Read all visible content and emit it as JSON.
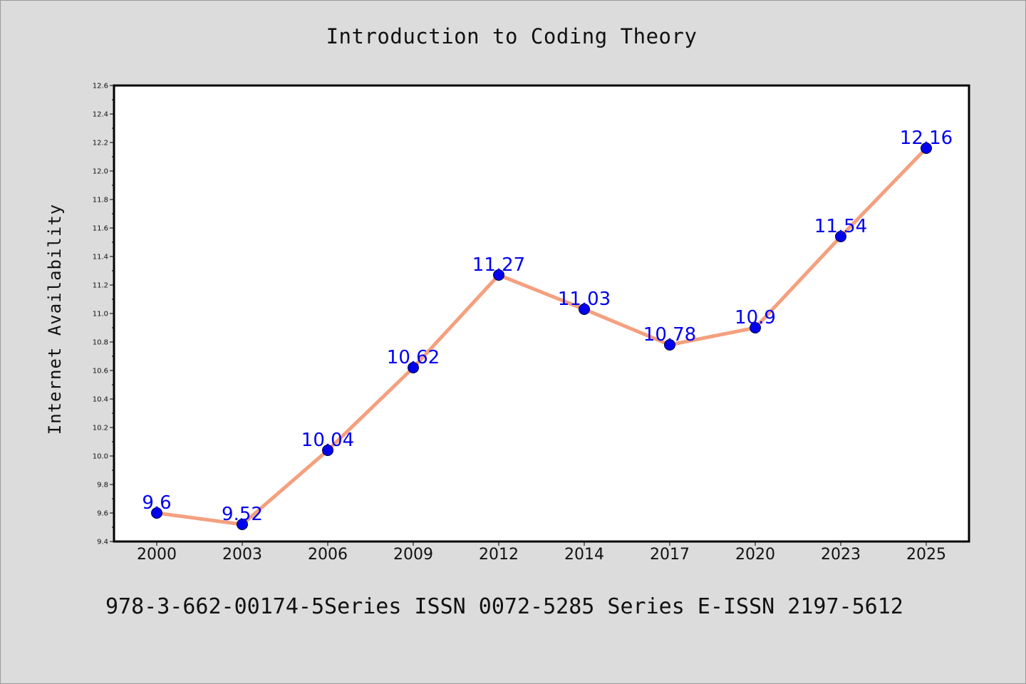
{
  "title": "Introduction to Coding Theory",
  "footer": "978-3-662-00174-5Series ISSN 0072-5285 Series E-ISSN 2197-5612",
  "colors": {
    "background": "#dcdcdc",
    "plot_background": "#ffffff",
    "line": "#f4a07f",
    "marker": "#0000ee",
    "data_label": "#0000ee"
  },
  "chart_data": {
    "type": "line",
    "title": "Introduction to Coding Theory",
    "xlabel": "",
    "ylabel": "Internet Availability",
    "categories": [
      "2000",
      "2003",
      "2006",
      "2009",
      "2012",
      "2014",
      "2017",
      "2020",
      "2023",
      "2025"
    ],
    "series": [
      {
        "values": [
          9.6,
          9.52,
          10.04,
          10.62,
          11.27,
          11.03,
          10.78,
          10.9,
          11.54,
          12.16
        ],
        "labels": [
          "9.6",
          "9.52",
          "10.04",
          "10.62",
          "11.27",
          "11.03",
          "10.78",
          "10.9",
          "11.54",
          "12.16"
        ]
      }
    ],
    "ylim": [
      9.4,
      12.6
    ],
    "yticks": [
      "9.4",
      "9.6",
      "9.8",
      "10.0",
      "10.2",
      "10.4",
      "10.6",
      "10.8",
      "11.0",
      "11.2",
      "11.4",
      "11.6",
      "11.8",
      "12.0",
      "12.2",
      "12.4",
      "12.6"
    ],
    "grid": false,
    "legend": "none"
  }
}
